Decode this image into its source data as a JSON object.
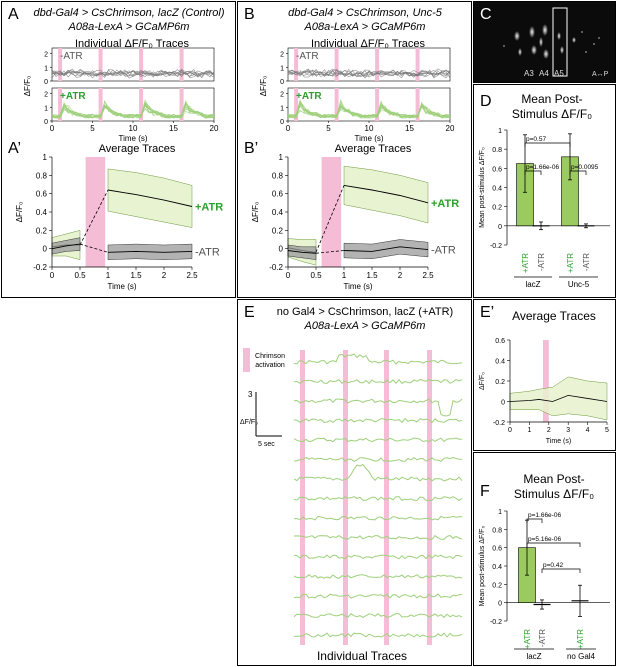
{
  "panels": {
    "A": {
      "letter": "A",
      "title_line1": "dbd-Gal4 > CsChrimson, lacZ (Control)",
      "title_line2": "A08a-LexA > GCaMP6m"
    },
    "A2": {
      "letter": "A’"
    },
    "B": {
      "letter": "B",
      "title_line1": "dbd-Gal4 > CsChrimson, Unc-5",
      "title_line2": "A08a-LexA > GCaMP6m"
    },
    "B2": {
      "letter": "B’"
    },
    "C": {
      "letter": "C",
      "seg_labels": [
        "A3",
        "A4",
        "A5"
      ],
      "axis_label": "A↔P"
    },
    "D": {
      "letter": "D"
    },
    "E": {
      "letter": "E",
      "title_line1": "no Gal4 > CsChrimson, lacZ (+ATR)",
      "title_line2": "A08a-LexA > GCaMP6m",
      "legend": "Chrimson activation",
      "scale_y": "3",
      "scale_unit": "ΔF/F₀",
      "scale_x": "5 sec",
      "footer": "Individual Traces"
    },
    "E2": {
      "letter": "E’"
    },
    "F": {
      "letter": "F"
    }
  },
  "colors": {
    "atr_green": "#2ca02c",
    "fill_green": "#e6f2cc",
    "trace_green": "#9dd07a",
    "pink": "#f5bcd6",
    "gray_fill": "#9a9a9a",
    "bar_green": "#9bcb5e"
  },
  "chart_data": [
    {
      "id": "A_individual",
      "type": "line",
      "title": "Individual ΔF/F₀ Traces",
      "xlabel": "Time (s)",
      "ylabel": "ΔF/F₀",
      "x_ticks": [
        0,
        5,
        10,
        15,
        20
      ],
      "y_ticks_top": [
        0,
        1,
        2
      ],
      "y_ticks_bottom": [
        0,
        1,
        2
      ],
      "groups": [
        "-ATR",
        "+ATR"
      ],
      "stim_times_s": [
        1,
        6,
        11,
        16
      ]
    },
    {
      "id": "A_average",
      "type": "line",
      "title": "Average Traces",
      "xlabel": "Time (s)",
      "ylabel": "ΔF/F₀",
      "xlim": [
        0,
        2.5
      ],
      "ylim": [
        -0.2,
        1.0
      ],
      "x_ticks": [
        0,
        0.5,
        1,
        1.5,
        2,
        2.5
      ],
      "y_ticks": [
        -0.2,
        0,
        0.2,
        0.4,
        0.6,
        0.8,
        1
      ],
      "stim_window": [
        0.6,
        0.95
      ],
      "series": [
        {
          "name": "+ATR",
          "pre_x": [
            0,
            0.25,
            0.5
          ],
          "pre_y": [
            0.02,
            0.04,
            0.04
          ],
          "pre_band": [
            0.1,
            0.12,
            0.16
          ],
          "post_x": [
            1,
            1.5,
            2,
            2.5
          ],
          "post_y": [
            0.64,
            0.59,
            0.53,
            0.46
          ],
          "post_band": [
            0.23,
            0.24,
            0.24,
            0.23
          ]
        },
        {
          "name": "-ATR",
          "pre_x": [
            0,
            0.25,
            0.5
          ],
          "pre_y": [
            0.0,
            0.03,
            0.05
          ],
          "pre_band": [
            0.06,
            0.06,
            0.07
          ],
          "post_x": [
            1,
            1.5,
            2,
            2.5
          ],
          "post_y": [
            -0.04,
            -0.03,
            -0.04,
            -0.03
          ],
          "post_band": [
            0.08,
            0.08,
            0.08,
            0.08
          ]
        }
      ]
    },
    {
      "id": "B_individual",
      "type": "line",
      "title": "Individual ΔF/F₀ Traces",
      "xlabel": "Time (s)",
      "ylabel": "ΔF/F₀",
      "x_ticks": [
        0,
        5,
        10,
        15,
        20
      ],
      "y_ticks_top": [
        0,
        1,
        2
      ],
      "y_ticks_bottom": [
        0,
        1,
        2
      ],
      "groups": [
        "-ATR",
        "+ATR"
      ],
      "stim_times_s": [
        1,
        6,
        11,
        16
      ]
    },
    {
      "id": "B_average",
      "type": "line",
      "title": "Average Traces",
      "xlabel": "Time (s)",
      "ylabel": "ΔF/F₀",
      "xlim": [
        0,
        2.5
      ],
      "ylim": [
        -0.2,
        1.0
      ],
      "x_ticks": [
        0,
        0.5,
        1,
        1.5,
        2,
        2.5
      ],
      "y_ticks": [
        -0.2,
        0,
        0.2,
        0.4,
        0.6,
        0.8,
        1
      ],
      "stim_window": [
        0.6,
        0.95
      ],
      "series": [
        {
          "name": "+ATR",
          "pre_x": [
            0,
            0.25,
            0.5
          ],
          "pre_y": [
            0.01,
            -0.02,
            -0.04
          ],
          "pre_band": [
            0.1,
            0.12,
            0.14
          ],
          "post_x": [
            1,
            1.5,
            2,
            2.5
          ],
          "post_y": [
            0.69,
            0.64,
            0.58,
            0.5
          ],
          "post_band": [
            0.21,
            0.22,
            0.22,
            0.22
          ]
        },
        {
          "name": "-ATR",
          "pre_x": [
            0,
            0.25,
            0.5
          ],
          "pre_y": [
            -0.02,
            -0.04,
            -0.05
          ],
          "pre_band": [
            0.06,
            0.06,
            0.07
          ],
          "post_x": [
            1,
            1.5,
            2,
            2.5
          ],
          "post_y": [
            -0.02,
            -0.03,
            0.02,
            -0.01
          ],
          "post_band": [
            0.08,
            0.08,
            0.08,
            0.08
          ]
        }
      ]
    },
    {
      "id": "D",
      "type": "bar",
      "title_line1": "Mean Post-",
      "title_line2": "Stimulus ΔF/F₀",
      "ylabel": "Mean post-stimulus ΔF/F₀",
      "ylim": [
        -0.2,
        1.0
      ],
      "y_ticks": [
        -0.2,
        0,
        0.2,
        0.4,
        0.6,
        0.8,
        1
      ],
      "categories": [
        "+ATR",
        "-ATR",
        "+ATR",
        "-ATR"
      ],
      "groups": [
        "lacZ",
        "Unc-5"
      ],
      "values": [
        0.65,
        0.0,
        0.72,
        0.0
      ],
      "errors": [
        0.3,
        0.04,
        0.24,
        0.02
      ],
      "pvalues": [
        {
          "text": "p=0.57",
          "from": 0,
          "to": 2
        },
        {
          "text": "p=1.66e-06",
          "from": 0,
          "to": 1
        },
        {
          "text": "p=0.0095",
          "from": 2,
          "to": 3
        }
      ]
    },
    {
      "id": "E_prime",
      "type": "line",
      "title": "Average Traces",
      "xlabel": "Time (s)",
      "ylabel": "ΔF/F₀",
      "xlim": [
        0,
        5
      ],
      "ylim": [
        -0.2,
        0.6
      ],
      "x_ticks": [
        0,
        1,
        2,
        3,
        4,
        5
      ],
      "y_ticks": [
        -0.2,
        0,
        0.2,
        0.4,
        0.6
      ],
      "stim_window": [
        1.7,
        2.0
      ],
      "series": [
        {
          "name": "no Gal4",
          "x": [
            0,
            1,
            1.5,
            2.2,
            3,
            4,
            5
          ],
          "y": [
            0.0,
            0.01,
            0.02,
            0.0,
            0.06,
            0.03,
            0.0
          ],
          "band": [
            0.08,
            0.09,
            0.1,
            0.14,
            0.18,
            0.17,
            0.18
          ]
        }
      ]
    },
    {
      "id": "F",
      "type": "bar",
      "title_line1": "Mean Post-",
      "title_line2": "Stimulus ΔF/F₀",
      "ylabel": "Mean post-stimulus ΔF/F₀",
      "ylim": [
        -0.2,
        1.0
      ],
      "y_ticks": [
        -0.2,
        0,
        0.2,
        0.4,
        0.6,
        0.8,
        1
      ],
      "categories": [
        "+ATR",
        "-ATR",
        "+ATR"
      ],
      "groups": [
        "lacZ",
        "no Gal4"
      ],
      "values": [
        0.6,
        -0.02,
        0.02
      ],
      "errors": [
        0.3,
        0.05,
        0.17
      ],
      "pvalues": [
        {
          "text": "p=1.66e-06",
          "from": 0,
          "to": 1
        },
        {
          "text": "p=5.16e-06",
          "from": 0,
          "to": 2
        },
        {
          "text": "p=0.42",
          "from": 1,
          "to": 2
        }
      ]
    }
  ]
}
